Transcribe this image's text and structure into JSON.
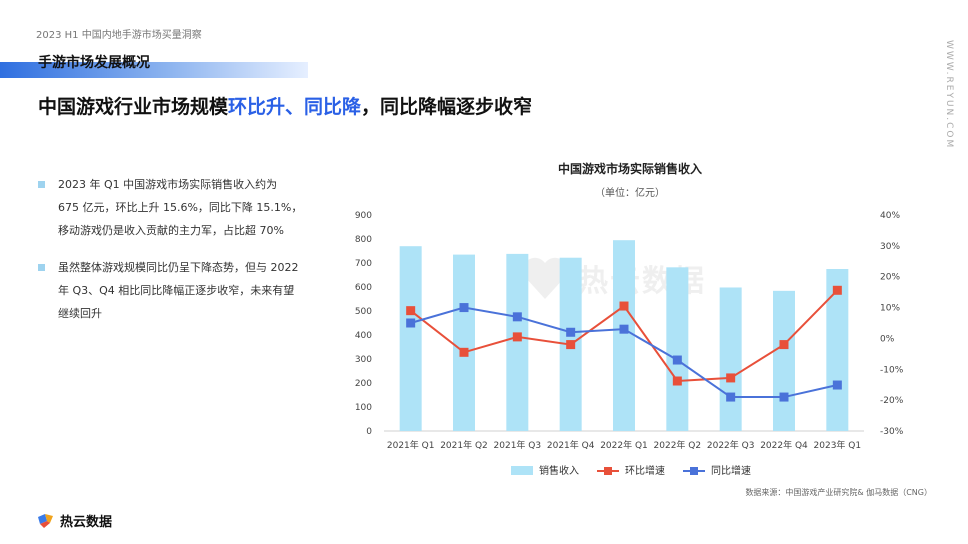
{
  "header": {
    "report_name": "2023 H1 中国内地手游市场买量洞察",
    "section_title": "手游市场发展概况",
    "headline_prefix": "中国游戏行业市场规模",
    "headline_highlight": "环比升、同比降",
    "headline_suffix": "，同比降幅逐步收窄",
    "side_url": "WWW.REYUN.COM"
  },
  "bullets": [
    {
      "lines": [
        "2023 年 Q1 中国游戏市场实际销售收入约为",
        "675 亿元，环比上升 15.6%，同比下降 15.1%，",
        "移动游戏仍是收入贡献的主力军，占比超 70%"
      ]
    },
    {
      "lines": [
        "虽然整体游戏规模同比仍呈下降态势，但与 2022",
        "年 Q3、Q4 相比同比降幅正逐步收窄，未来有望",
        "继续回升"
      ]
    }
  ],
  "colors": {
    "bar": "#aee3f7",
    "mom": "#e8503a",
    "yoy": "#4a72d9",
    "accent": "#2a60e6"
  },
  "chart_data": {
    "type": "bar",
    "title": "中国游戏市场实际销售收入",
    "subtitle": "（单位：亿元）",
    "categories": [
      "2021年 Q1",
      "2021年 Q2",
      "2021年 Q3",
      "2021年 Q4",
      "2022年 Q1",
      "2022年 Q2",
      "2022年 Q3",
      "2022年 Q4",
      "2023年 Q1"
    ],
    "series": [
      {
        "name": "销售收入",
        "kind": "bar",
        "axis": "left",
        "values": [
          770,
          735,
          738,
          722,
          795,
          682,
          598,
          584,
          675
        ]
      },
      {
        "name": "环比增速",
        "kind": "line",
        "axis": "right",
        "values": [
          9,
          -4.5,
          0.5,
          -2,
          10.5,
          -13.8,
          -12.8,
          -2,
          15.6
        ]
      },
      {
        "name": "同比增速",
        "kind": "line",
        "axis": "right",
        "values": [
          5,
          10,
          7,
          2,
          3,
          -7,
          -19,
          -19,
          -15.1
        ]
      }
    ],
    "y_left": {
      "min": 0,
      "max": 900,
      "ticks": [
        "0",
        "100",
        "200",
        "300",
        "400",
        "500",
        "600",
        "700",
        "800",
        "900"
      ]
    },
    "y_right": {
      "min": -30,
      "max": 40,
      "ticks": [
        "-30%",
        "-20%",
        "-10%",
        "0%",
        "10%",
        "20%",
        "30%",
        "40%"
      ]
    },
    "legend_position": "bottom",
    "grid": false
  },
  "watermark": "热云数据",
  "source": "数据来源：中国游戏产业研究院& 伽马数据（CNG）",
  "logo_text": "热云数据"
}
